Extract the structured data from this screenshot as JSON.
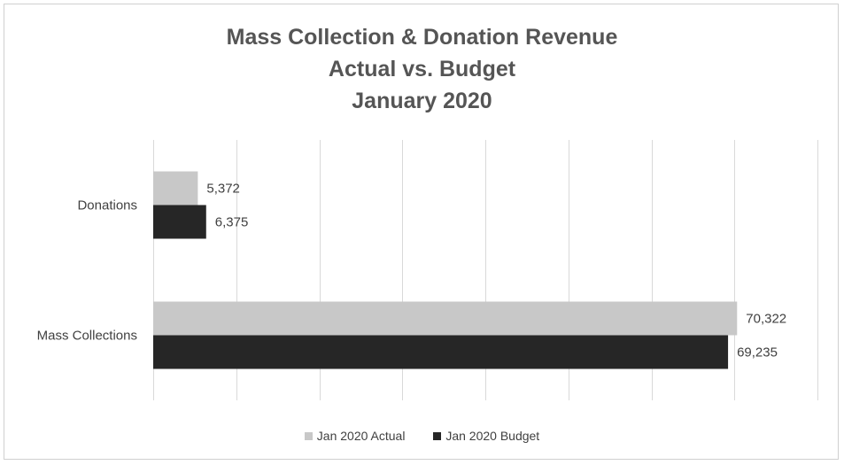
{
  "chart_data": {
    "type": "bar",
    "orientation": "horizontal",
    "title_lines": [
      "Mass Collection & Donation Revenue",
      "Actual vs. Budget",
      "January 2020"
    ],
    "categories": [
      "Donations",
      "Mass Collections"
    ],
    "series": [
      {
        "name": "Jan 2020 Actual",
        "values": [
          5372,
          70322
        ],
        "labels": [
          "5,372",
          "70,322"
        ],
        "color": "#c8c8c8"
      },
      {
        "name": "Jan 2020 Budget",
        "values": [
          6375,
          69235
        ],
        "labels": [
          "6,375",
          "69,235"
        ],
        "color": "#262626"
      }
    ],
    "xlim": [
      0,
      80000
    ],
    "x_grid_step": 10000,
    "grid": true,
    "legend_position": "bottom"
  }
}
